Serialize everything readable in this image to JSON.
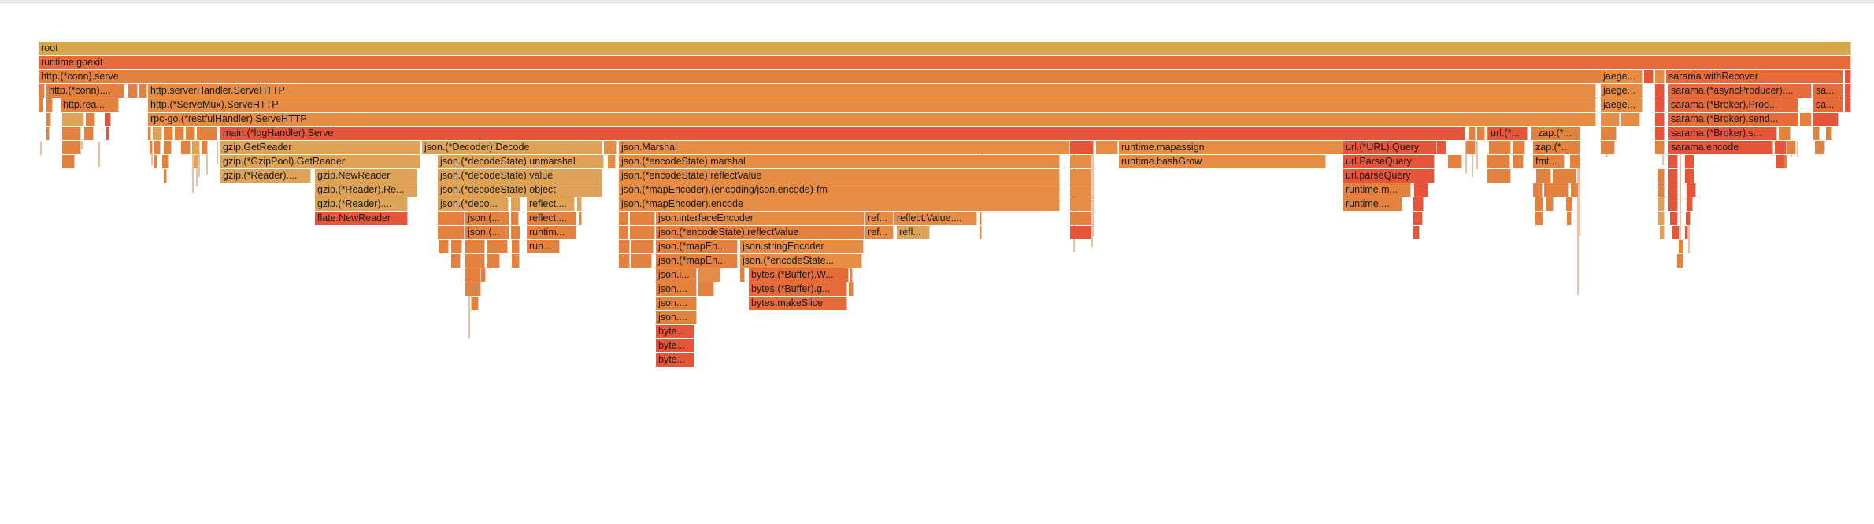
{
  "palette": {
    "gold": "#d6a74a",
    "orange": "#e3813f",
    "lightorange": "#e68d45",
    "tan": "#dea357",
    "red": "#e5553a",
    "redorange": "#e56c3a",
    "pink": "#e6a0a0",
    "white": "#ffffff"
  },
  "labels": {
    "root": "root",
    "goexit": "runtime.goexit",
    "conn_serve": "http.(*conn).serve",
    "jaeger1": "jaege...",
    "sarama_recover": "sarama.withRecover",
    "conn_short": "http.(*conn)....",
    "server_handler": "http.serverHandler.ServeHTTP",
    "jaeger2": "jaege...",
    "sarama_async": "sarama.(*asyncProducer)....",
    "sa1": "sa...",
    "http_rea": "http.rea...",
    "servemux": "http.(*ServeMux).ServeHTTP",
    "jaeger3": "jaege...",
    "sarama_broker_prod": "sarama.(*Broker).Prod...",
    "sa2": "sa...",
    "restful": "rpc-go.(*restfulHandler).ServeHTTP",
    "sarama_broker_send": "sarama.(*Broker).send...",
    "loghandler": "main.(*logHandler).Serve",
    "url_star": "url.(*...",
    "zap1": "zap.(*...",
    "sarama_broker_s": "sarama.(*Broker).s...",
    "gzip_getreader": "gzip.GetReader",
    "decoder_decode": "json.(*Decoder).Decode",
    "json_marshal": "json.Marshal",
    "mapassign": "runtime.mapassign",
    "url_query": "url.(*URL).Query",
    "zap2": "zap.(*...",
    "sarama_encode": "sarama.encode",
    "gzippool": "gzip.(*GzipPool).GetReader",
    "unmarshal": "json.(*decodeState).unmarshal",
    "marshal_es": "json.(*encodeState).marshal",
    "hashgrow": "runtime.hashGrow",
    "parsequery": "url.ParseQuery",
    "fmt": "fmt...",
    "gzip_reader_short": "gzip.(*Reader)....",
    "gzip_newreader": "gzip.NewReader",
    "ds_value": "json.(*decodeState).value",
    "reflectvalue_top": "json.(*encodeState).reflectValue",
    "url_parsequery": "url.parseQuery",
    "gzip_reader_re": "gzip.(*Reader).Re...",
    "ds_object": "json.(*decodeState).object",
    "mapencoder_fm": "json.(*mapEncoder).(encoding/json.encode)-fm",
    "runtime_m": "runtime.m...",
    "gzip_reader_3": "gzip.(*Reader)....",
    "json_deco": "json.(*deco...",
    "reflect_1": "reflect....",
    "mapencoder_encode": "json.(*mapEncoder).encode",
    "runtime_short": "runtime....",
    "flate_newreader": "flate.NewReader",
    "json_paren1": "json.(...",
    "reflect_2": "reflect....",
    "interfaceencoder": "json.interfaceEncoder",
    "ref1": "ref...",
    "reflect_value_dots": "reflect.Value....",
    "json_paren2": "json.(...",
    "runtim": "runtim...",
    "es_reflectvalue": "json.(*encodeState).reflectValue",
    "ref2": "ref...",
    "refl": "refl...",
    "run": "run...",
    "mapen1": "json.(*mapEn...",
    "stringencoder": "json.stringEncoder",
    "mapen2": "json.(*mapEn...",
    "encodestate_dots": "json.(*encodeState...",
    "json_i": "json.i...",
    "buffer_w": "bytes.(*Buffer).W...",
    "json_dots1": "json....",
    "buffer_g": "bytes.(*Buffer).g...",
    "json_dots2": "json....",
    "makeslice": "bytes.makeSlice",
    "json_dots3": "json....",
    "byte1": "byte...",
    "byte2": "byte...",
    "byte3": "byte..."
  }
}
